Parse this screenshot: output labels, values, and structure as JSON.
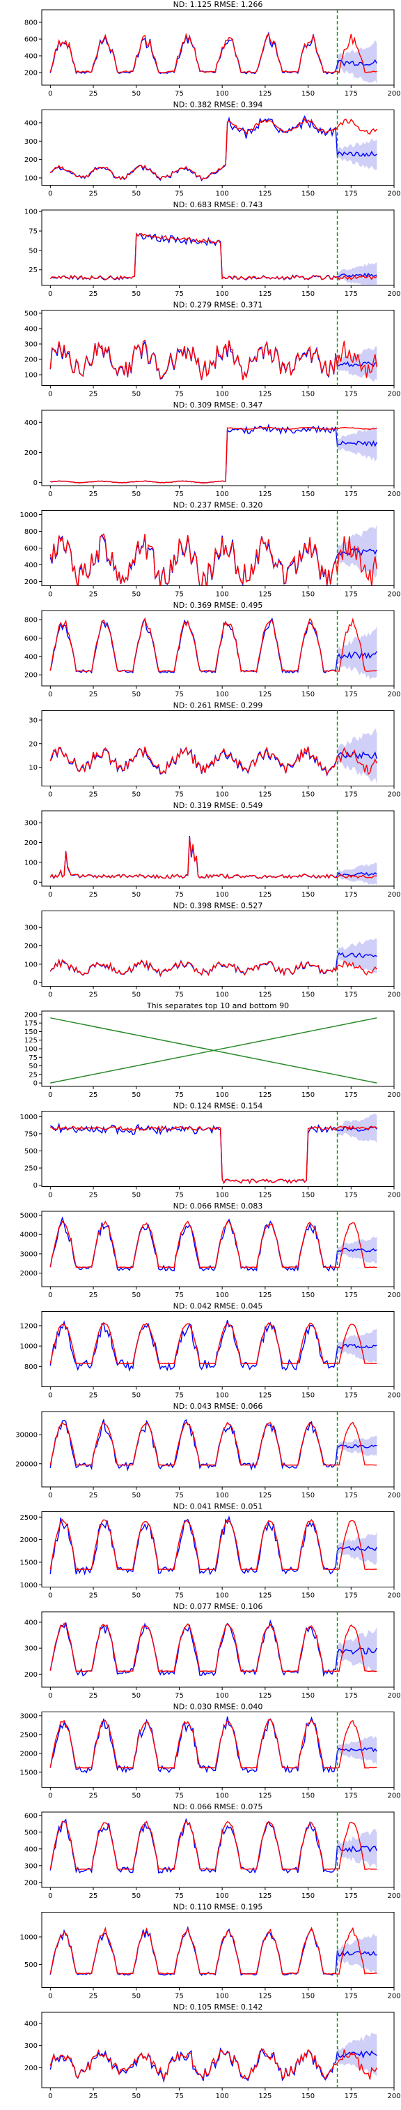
{
  "colors": {
    "actual": "#ff0000",
    "forecast": "#0000ff",
    "band": "#a8a8f0",
    "split_line": "#00a000",
    "separator_lines": "#2a8a2a",
    "axis": "#000000"
  },
  "chart_data": [
    {
      "type": "line",
      "title": "ND:  1.125 RMSE:  1.266",
      "xlim": [
        -5,
        200
      ],
      "ylim": [
        50,
        950
      ],
      "yticks": [
        200,
        400,
        600,
        800
      ],
      "xticks": [
        0,
        25,
        50,
        75,
        100,
        125,
        150,
        175,
        200
      ],
      "split_x": 167,
      "grid": false,
      "pattern": "daily",
      "base": 140,
      "amp": 460,
      "noise": 0.3,
      "fmean": 320,
      "fspread": 180
    },
    {
      "type": "line",
      "title": "ND:  0.382 RMSE:  0.394",
      "xlim": [
        -5,
        200
      ],
      "ylim": [
        60,
        470
      ],
      "yticks": [
        100,
        200,
        300,
        400
      ],
      "xticks": [
        0,
        25,
        50,
        75,
        100,
        125,
        150,
        175,
        200
      ],
      "split_x": 167,
      "grid": false,
      "pattern": "step_up",
      "base": 130,
      "amp": 60,
      "level2": 380,
      "fmean": 230,
      "fspread": 60
    },
    {
      "type": "line",
      "title": "ND:  0.683 RMSE:  0.743",
      "xlim": [
        -5,
        200
      ],
      "ylim": [
        5,
        102
      ],
      "yticks": [
        25,
        50,
        75,
        100
      ],
      "xticks": [
        0,
        25,
        50,
        75,
        100,
        125,
        150,
        175,
        200
      ],
      "split_x": 167,
      "grid": false,
      "pattern": "plateau",
      "base": 15,
      "amp": 5,
      "level2": 70,
      "fmean": 18,
      "fspread": 12
    },
    {
      "type": "line",
      "title": "ND:  0.279 RMSE:  0.371",
      "xlim": [
        -5,
        200
      ],
      "ylim": [
        30,
        520
      ],
      "yticks": [
        100,
        200,
        300,
        400,
        500
      ],
      "xticks": [
        0,
        25,
        50,
        75,
        100,
        125,
        150,
        175,
        200
      ],
      "split_x": 167,
      "grid": false,
      "pattern": "noisy",
      "base": 200,
      "amp": 120,
      "noise": 0.6,
      "fmean": 170,
      "fspread": 80
    },
    {
      "type": "line",
      "title": "ND:  0.309 RMSE:  0.347",
      "xlim": [
        -5,
        200
      ],
      "ylim": [
        -20,
        480
      ],
      "yticks": [
        0,
        200,
        400
      ],
      "xticks": [
        0,
        25,
        50,
        75,
        100,
        125,
        150,
        175,
        200
      ],
      "split_x": 167,
      "grid": false,
      "pattern": "step_up",
      "base": 5,
      "amp": 10,
      "level2": 360,
      "fmean": 260,
      "fspread": 80
    },
    {
      "type": "line",
      "title": "ND:  0.237 RMSE:  0.320",
      "xlim": [
        -5,
        200
      ],
      "ylim": [
        150,
        1050
      ],
      "yticks": [
        200,
        400,
        600,
        800,
        1000
      ],
      "xticks": [
        0,
        25,
        50,
        75,
        100,
        125,
        150,
        175,
        200
      ],
      "split_x": 167,
      "grid": false,
      "pattern": "noisy",
      "base": 450,
      "amp": 320,
      "noise": 0.5,
      "fmean": 550,
      "fspread": 220
    },
    {
      "type": "line",
      "title": "ND:  0.369 RMSE:  0.495",
      "xlim": [
        -5,
        200
      ],
      "ylim": [
        80,
        900
      ],
      "yticks": [
        200,
        400,
        600,
        800
      ],
      "xticks": [
        0,
        25,
        50,
        75,
        100,
        125,
        150,
        175,
        200
      ],
      "split_x": 167,
      "grid": false,
      "pattern": "daily",
      "base": 150,
      "amp": 620,
      "noise": 0.15,
      "fmean": 420,
      "fspread": 200
    },
    {
      "type": "line",
      "title": "ND:  0.261 RMSE:  0.299",
      "xlim": [
        -5,
        200
      ],
      "ylim": [
        2,
        34
      ],
      "yticks": [
        10,
        20,
        30
      ],
      "xticks": [
        0,
        25,
        50,
        75,
        100,
        125,
        150,
        175,
        200
      ],
      "split_x": 167,
      "grid": false,
      "pattern": "noisy",
      "base": 13,
      "amp": 6,
      "noise": 0.4,
      "fmean": 15,
      "fspread": 8
    },
    {
      "type": "line",
      "title": "ND:  0.319 RMSE:  0.549",
      "xlim": [
        -5,
        200
      ],
      "ylim": [
        -20,
        360
      ],
      "yticks": [
        0,
        100,
        200,
        300
      ],
      "xticks": [
        0,
        25,
        50,
        75,
        100,
        125,
        150,
        175,
        200
      ],
      "split_x": 167,
      "grid": false,
      "pattern": "spiky",
      "base": 30,
      "amp": 20,
      "noise": 0.3,
      "fmean": 40,
      "fspread": 40
    },
    {
      "type": "line",
      "title": "ND:  0.398 RMSE:  0.527",
      "xlim": [
        -5,
        200
      ],
      "ylim": [
        -20,
        390
      ],
      "yticks": [
        0,
        100,
        200,
        300
      ],
      "xticks": [
        0,
        25,
        50,
        75,
        100,
        125,
        150,
        175,
        200
      ],
      "split_x": 167,
      "grid": false,
      "pattern": "noisy",
      "base": 80,
      "amp": 40,
      "noise": 0.5,
      "fmean": 150,
      "fspread": 70
    },
    {
      "type": "line",
      "title": "This separates top 10 and bottom 90",
      "xlim": [
        -5,
        200
      ],
      "ylim": [
        -10,
        210
      ],
      "yticks": [
        0,
        25,
        50,
        75,
        100,
        125,
        150,
        175,
        200
      ],
      "xticks": [
        0,
        25,
        50,
        75,
        100,
        125,
        150,
        175,
        200
      ],
      "split_x": null,
      "grid": false,
      "pattern": "separator",
      "lines": [
        {
          "x": [
            0,
            190
          ],
          "y": [
            190,
            0
          ]
        },
        {
          "x": [
            0,
            190
          ],
          "y": [
            0,
            190
          ]
        }
      ]
    },
    {
      "type": "line",
      "title": "ND:  0.124 RMSE:  0.154",
      "xlim": [
        -5,
        200
      ],
      "ylim": [
        -20,
        1080
      ],
      "yticks": [
        0,
        250,
        500,
        750,
        1000
      ],
      "xticks": [
        0,
        25,
        50,
        75,
        100,
        125,
        150,
        175,
        200
      ],
      "split_x": 167,
      "grid": false,
      "pattern": "dip",
      "base": 830,
      "amp": 60,
      "level2": 60,
      "fmean": 820,
      "fspread": 150
    },
    {
      "type": "line",
      "title": "ND:  0.066 RMSE:  0.083",
      "xlim": [
        -5,
        200
      ],
      "ylim": [
        1300,
        5200
      ],
      "yticks": [
        2000,
        3000,
        4000,
        5000
      ],
      "xticks": [
        0,
        25,
        50,
        75,
        100,
        125,
        150,
        175,
        200
      ],
      "split_x": 167,
      "grid": false,
      "pattern": "daily",
      "base": 1900,
      "amp": 2700,
      "noise": 0.08,
      "fmean": 3200,
      "fspread": 500
    },
    {
      "type": "line",
      "title": "ND:  0.042 RMSE:  0.045",
      "xlim": [
        -5,
        200
      ],
      "ylim": [
        600,
        1340
      ],
      "yticks": [
        800,
        1000,
        1200
      ],
      "xticks": [
        0,
        25,
        50,
        75,
        100,
        125,
        150,
        175,
        200
      ],
      "split_x": 167,
      "grid": false,
      "pattern": "daily",
      "base": 760,
      "amp": 460,
      "noise": 0.05,
      "fmean": 1000,
      "fspread": 120
    },
    {
      "type": "line",
      "title": "ND:  0.043 RMSE:  0.066",
      "xlim": [
        -5,
        200
      ],
      "ylim": [
        12000,
        38000
      ],
      "yticks": [
        20000,
        30000
      ],
      "xticks": [
        0,
        25,
        50,
        75,
        100,
        125,
        150,
        175,
        200
      ],
      "split_x": 167,
      "grid": false,
      "pattern": "daily",
      "base": 17000,
      "amp": 17000,
      "noise": 0.05,
      "fmean": 26000,
      "fspread": 2500
    },
    {
      "type": "line",
      "title": "ND:  0.041 RMSE:  0.051",
      "xlim": [
        -5,
        200
      ],
      "ylim": [
        950,
        2620
      ],
      "yticks": [
        1000,
        1500,
        2000,
        2500
      ],
      "xticks": [
        0,
        25,
        50,
        75,
        100,
        125,
        150,
        175,
        200
      ],
      "split_x": 167,
      "grid": false,
      "pattern": "daily",
      "base": 1150,
      "amp": 1280,
      "noise": 0.05,
      "fmean": 1800,
      "fspread": 250
    },
    {
      "type": "line",
      "title": "ND:  0.077 RMSE:  0.106",
      "xlim": [
        -5,
        200
      ],
      "ylim": [
        150,
        440
      ],
      "yticks": [
        200,
        300,
        400
      ],
      "xticks": [
        0,
        25,
        50,
        75,
        100,
        125,
        150,
        175,
        200
      ],
      "split_x": 167,
      "grid": false,
      "pattern": "daily",
      "base": 180,
      "amp": 210,
      "noise": 0.08,
      "fmean": 290,
      "fspread": 60
    },
    {
      "type": "line",
      "title": "ND:  0.030 RMSE:  0.040",
      "xlim": [
        -5,
        200
      ],
      "ylim": [
        1100,
        3100
      ],
      "yticks": [
        1500,
        2000,
        2500,
        3000
      ],
      "xticks": [
        0,
        25,
        50,
        75,
        100,
        125,
        150,
        175,
        200
      ],
      "split_x": 167,
      "grid": false,
      "pattern": "daily",
      "base": 1400,
      "amp": 1450,
      "noise": 0.08,
      "fmean": 2100,
      "fspread": 260
    },
    {
      "type": "line",
      "title": "ND:  0.066 RMSE:  0.075",
      "xlim": [
        -5,
        200
      ],
      "ylim": [
        170,
        620
      ],
      "yticks": [
        200,
        300,
        400,
        500,
        600
      ],
      "xticks": [
        0,
        25,
        50,
        75,
        100,
        125,
        150,
        175,
        200
      ],
      "split_x": 167,
      "grid": false,
      "pattern": "daily",
      "base": 230,
      "amp": 330,
      "noise": 0.08,
      "fmean": 400,
      "fspread": 80
    },
    {
      "type": "line",
      "title": "ND:  0.110 RMSE:  0.195",
      "xlim": [
        -5,
        200
      ],
      "ylim": [
        80,
        1450
      ],
      "yticks": [
        500,
        1000
      ],
      "xticks": [
        0,
        25,
        50,
        75,
        100,
        125,
        150,
        175,
        200
      ],
      "split_x": 167,
      "grid": false,
      "pattern": "daily",
      "base": 200,
      "amp": 900,
      "noise": 0.15,
      "fmean": 700,
      "fspread": 260
    },
    {
      "type": "line",
      "title": "ND:  0.105 RMSE:  0.142",
      "xlim": [
        -5,
        200
      ],
      "ylim": [
        110,
        450
      ],
      "yticks": [
        200,
        300,
        400
      ],
      "xticks": [
        0,
        25,
        50,
        75,
        100,
        125,
        150,
        175,
        200
      ],
      "split_x": 167,
      "grid": false,
      "pattern": "noisy",
      "base": 220,
      "amp": 80,
      "noise": 0.35,
      "fmean": 260,
      "fspread": 70
    }
  ]
}
